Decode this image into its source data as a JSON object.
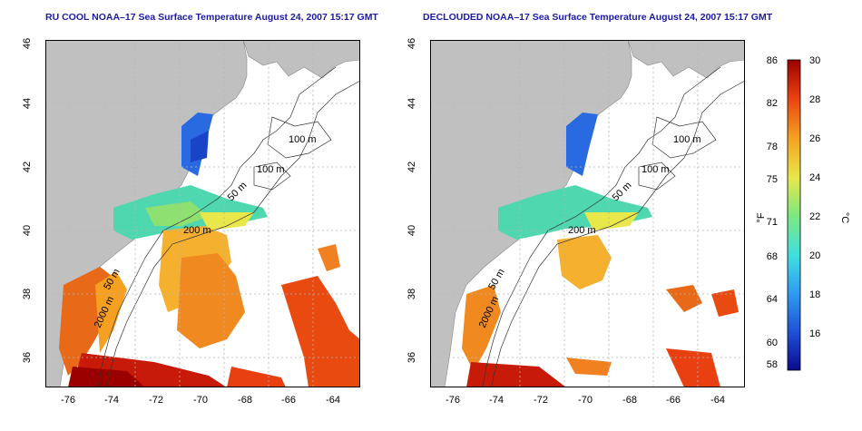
{
  "left_panel": {
    "title": "RU COOL NOAA–17 Sea Surface Temperature August 24, 2007 15:17 GMT",
    "lon_ticks": [
      "-76",
      "-74",
      "-72",
      "-70",
      "-68",
      "-66",
      "-64"
    ],
    "lat_ticks": [
      "36",
      "38",
      "40",
      "42",
      "44",
      "46"
    ],
    "contour_labels": [
      "100 m",
      "100 m",
      "50 m",
      "200 m",
      "50 m",
      "2000 m"
    ]
  },
  "right_panel": {
    "title": "DECLOUDED NOAA–17 Sea Surface Temperature August 24, 2007 15:17 GMT",
    "lon_ticks": [
      "-76",
      "-74",
      "-72",
      "-70",
      "-68",
      "-66",
      "-64"
    ],
    "lat_ticks": [
      "36",
      "38",
      "40",
      "42",
      "44",
      "46"
    ],
    "contour_labels": [
      "100 m",
      "100 m",
      "50 m",
      "200 m",
      "50 m",
      "2000 m"
    ]
  },
  "colorbar": {
    "fahrenheit_label": "°F",
    "celsius_label": "°C",
    "fahrenheit_ticks": [
      "86",
      "82",
      "78",
      "75",
      "71",
      "68",
      "64",
      "60",
      "58"
    ],
    "celsius_ticks": [
      "30",
      "28",
      "26",
      "24",
      "22",
      "20",
      "18",
      "16"
    ],
    "range_c": [
      14,
      30
    ],
    "colors": [
      "#0a0a8c",
      "#1f4fd6",
      "#2f9cf0",
      "#3fe0e0",
      "#7fe87f",
      "#e8e84a",
      "#f5a020",
      "#e84010",
      "#9a0000"
    ]
  },
  "colors": {
    "land": "#c0c0c0",
    "ocean": "#ffffff",
    "title": "#1a1aa6",
    "grid": "#b4b4b4"
  }
}
